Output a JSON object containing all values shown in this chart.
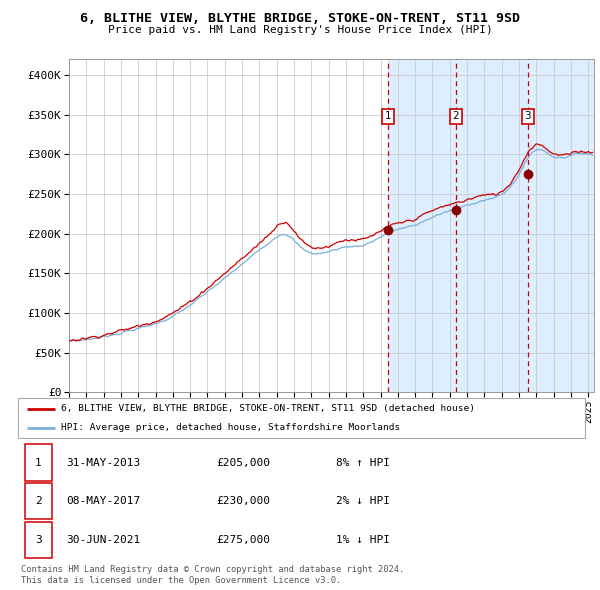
{
  "title": "6, BLITHE VIEW, BLYTHE BRIDGE, STOKE-ON-TRENT, ST11 9SD",
  "subtitle": "Price paid vs. HM Land Registry's House Price Index (HPI)",
  "legend_line1": "6, BLITHE VIEW, BLYTHE BRIDGE, STOKE-ON-TRENT, ST11 9SD (detached house)",
  "legend_line2": "HPI: Average price, detached house, Staffordshire Moorlands",
  "sale_dates": [
    "2013-05-31",
    "2017-05-08",
    "2021-06-30"
  ],
  "sale_prices": [
    205000,
    230000,
    275000
  ],
  "sale_labels": [
    "1",
    "2",
    "3"
  ],
  "row_dates": [
    "31-MAY-2013",
    "08-MAY-2017",
    "30-JUN-2021"
  ],
  "row_prices": [
    "£205,000",
    "£230,000",
    "£275,000"
  ],
  "row_hpi": [
    "8% ↑ HPI",
    "2% ↓ HPI",
    "1% ↓ HPI"
  ],
  "footer": "Contains HM Land Registry data © Crown copyright and database right 2024.\nThis data is licensed under the Open Government Licence v3.0.",
  "red_line_color": "#cc0000",
  "blue_line_color": "#7aafdc",
  "shade_color": "#ddeeff",
  "dot_color": "#880000",
  "vline_color": "#cc0000",
  "grid_color": "#cccccc",
  "bg_color": "#ffffff",
  "ylim": [
    0,
    420000
  ],
  "yticks": [
    0,
    50000,
    100000,
    150000,
    200000,
    250000,
    300000,
    350000,
    400000
  ],
  "ytick_labels": [
    "£0",
    "£50K",
    "£100K",
    "£150K",
    "£200K",
    "£250K",
    "£300K",
    "£350K",
    "£400K"
  ],
  "start_year": 1995,
  "end_year": 2025
}
